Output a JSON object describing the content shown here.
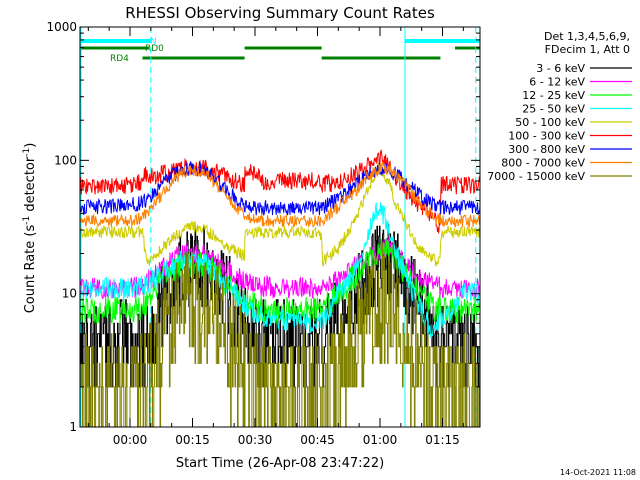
{
  "chart_data": {
    "type": "line",
    "title": "RHESSI Observing Summary Count Rates",
    "xlabel": "Start Time (26-Apr-08 23:47:22)",
    "ylabel": "Count Rate (s⁻¹ detector⁻¹)",
    "ylabel_parts": {
      "main": "Count Rate (s",
      "exp1": "-1",
      "mid": " detector",
      "exp2": "-1",
      "end": ")"
    },
    "y_scale": "log",
    "ylim": [
      1,
      1000
    ],
    "y_ticks": [
      {
        "value": 1,
        "label": "1"
      },
      {
        "value": 10,
        "label": "10"
      },
      {
        "value": 100,
        "label": "100"
      },
      {
        "value": 1000,
        "label": "1000"
      }
    ],
    "x_unit": "minutes",
    "xlim": [
      -12,
      84
    ],
    "x_ticks": [
      {
        "value": 0,
        "label": "00:00"
      },
      {
        "value": 15,
        "label": "00:15"
      },
      {
        "value": 30,
        "label": "00:30"
      },
      {
        "value": 45,
        "label": "00:45"
      },
      {
        "value": 60,
        "label": "01:00"
      },
      {
        "value": 75,
        "label": "01:15"
      }
    ],
    "legend_header": [
      "Det 1,3,4,5,6,9,",
      "FDecim 1, Att 0"
    ],
    "legend_position": "right",
    "footer_date": "14-Oct-2021 11:08",
    "flags": [
      {
        "label": "N",
        "color": "#00ffff",
        "segments": [
          [
            -12,
            5
          ],
          [
            66,
            84
          ]
        ]
      },
      {
        "label": "RD0",
        "color": "#008000",
        "segments": [
          [
            -12,
            4.5
          ],
          [
            27.5,
            46
          ],
          [
            78,
            84
          ]
        ]
      },
      {
        "label": "RD4",
        "color": "#008000",
        "segments": [
          [
            3,
            27.5
          ],
          [
            46,
            74.5
          ]
        ]
      }
    ],
    "night_lines": [
      {
        "x": 5,
        "style": "dashed"
      },
      {
        "x": 66,
        "style": "solid"
      },
      {
        "x": 83,
        "style": "dashed"
      }
    ],
    "series": [
      {
        "name": "3 - 6 keV",
        "color": "#000000",
        "points": [
          [
            -12,
            4.2
          ],
          [
            -6,
            4.2
          ],
          [
            0,
            4.2
          ],
          [
            3,
            4.2
          ],
          [
            6,
            6
          ],
          [
            9,
            10
          ],
          [
            12,
            14
          ],
          [
            15,
            16.5
          ],
          [
            18,
            15
          ],
          [
            21,
            12
          ],
          [
            24,
            9
          ],
          [
            27,
            6
          ],
          [
            30,
            4.5
          ],
          [
            35,
            4.3
          ],
          [
            40,
            4.3
          ],
          [
            46,
            4.3
          ],
          [
            50,
            6
          ],
          [
            54,
            9
          ],
          [
            57,
            13
          ],
          [
            60,
            17
          ],
          [
            62,
            18
          ],
          [
            64,
            16
          ],
          [
            67,
            11
          ],
          [
            70,
            7.5
          ],
          [
            73,
            5.2
          ],
          [
            75,
            4.5
          ],
          [
            78,
            4.2
          ],
          [
            84,
            4.2
          ]
        ]
      },
      {
        "name": "6 - 12 keV",
        "color": "#ff00ff",
        "points": [
          [
            -12,
            11
          ],
          [
            -6,
            11
          ],
          [
            0,
            11
          ],
          [
            3,
            11.5
          ],
          [
            6,
            14
          ],
          [
            9,
            17
          ],
          [
            12,
            19.5
          ],
          [
            15,
            20
          ],
          [
            18,
            19.5
          ],
          [
            21,
            17
          ],
          [
            24,
            14.5
          ],
          [
            27,
            12.5
          ],
          [
            30,
            11.5
          ],
          [
            35,
            11
          ],
          [
            40,
            11
          ],
          [
            46,
            11
          ],
          [
            50,
            13
          ],
          [
            54,
            16
          ],
          [
            57,
            19
          ],
          [
            60,
            21
          ],
          [
            62,
            22
          ],
          [
            64,
            20
          ],
          [
            67,
            16
          ],
          [
            70,
            13
          ],
          [
            73,
            11.5
          ],
          [
            75,
            11
          ],
          [
            78,
            11
          ],
          [
            84,
            11
          ]
        ]
      },
      {
        "name": "12 - 25 keV",
        "color": "#00ff00",
        "points": [
          [
            -12,
            7.5
          ],
          [
            -6,
            7.5
          ],
          [
            0,
            7.5
          ],
          [
            3,
            8
          ],
          [
            6,
            11
          ],
          [
            9,
            14
          ],
          [
            12,
            16.5
          ],
          [
            15,
            17
          ],
          [
            18,
            16
          ],
          [
            21,
            14
          ],
          [
            24,
            11
          ],
          [
            27,
            9
          ],
          [
            30,
            8
          ],
          [
            35,
            7.5
          ],
          [
            40,
            7.5
          ],
          [
            46,
            7.5
          ],
          [
            50,
            10
          ],
          [
            54,
            13.5
          ],
          [
            57,
            18
          ],
          [
            60,
            21
          ],
          [
            62,
            21.5
          ],
          [
            64,
            18
          ],
          [
            67,
            13
          ],
          [
            70,
            9.5
          ],
          [
            73,
            8
          ],
          [
            75,
            7.5
          ],
          [
            78,
            7.5
          ],
          [
            84,
            7.5
          ]
        ]
      },
      {
        "name": "25 - 50 keV",
        "color": "#00ffff",
        "points": [
          [
            -12,
            11
          ],
          [
            -6,
            11
          ],
          [
            0,
            11
          ],
          [
            3,
            11.5
          ],
          [
            6,
            13
          ],
          [
            9,
            15.5
          ],
          [
            12,
            17.5
          ],
          [
            15,
            18
          ],
          [
            18,
            17
          ],
          [
            21,
            14
          ],
          [
            24,
            11
          ],
          [
            27,
            8.5
          ],
          [
            30,
            7
          ],
          [
            35,
            6.5
          ],
          [
            40,
            6
          ],
          [
            46,
            6
          ],
          [
            50,
            10
          ],
          [
            54,
            15
          ],
          [
            57,
            28
          ],
          [
            59,
            40
          ],
          [
            60,
            44
          ],
          [
            62,
            32
          ],
          [
            64,
            20
          ],
          [
            67,
            12
          ],
          [
            70,
            7.5
          ],
          [
            72,
            5.5
          ],
          [
            75,
            6.5
          ],
          [
            78,
            8
          ],
          [
            80,
            10
          ],
          [
            84,
            10
          ]
        ]
      },
      {
        "name": "50 - 100 keV",
        "color": "#cccc00",
        "points": [
          [
            -12,
            29
          ],
          [
            -6,
            29
          ],
          [
            0,
            29
          ],
          [
            3,
            29
          ],
          [
            4,
            17
          ],
          [
            6,
            19
          ],
          [
            9,
            24
          ],
          [
            12,
            29
          ],
          [
            15,
            32
          ],
          [
            18,
            30
          ],
          [
            21,
            26
          ],
          [
            24,
            22
          ],
          [
            27.5,
            19
          ],
          [
            27.6,
            29
          ],
          [
            32,
            29
          ],
          [
            40,
            29
          ],
          [
            46,
            28
          ],
          [
            46.1,
            17
          ],
          [
            50,
            22
          ],
          [
            54,
            35
          ],
          [
            57,
            60
          ],
          [
            59,
            80
          ],
          [
            60,
            90
          ],
          [
            62,
            70
          ],
          [
            64,
            45
          ],
          [
            67,
            30
          ],
          [
            70,
            21
          ],
          [
            73,
            18
          ],
          [
            74.5,
            17
          ],
          [
            74.6,
            29
          ],
          [
            80,
            29
          ],
          [
            84,
            29
          ]
        ]
      },
      {
        "name": "100 - 300 keV",
        "color": "#ff0000",
        "points": [
          [
            -12,
            64
          ],
          [
            -6,
            64
          ],
          [
            0,
            64
          ],
          [
            3,
            70
          ],
          [
            4,
            80
          ],
          [
            6,
            75
          ],
          [
            9,
            82
          ],
          [
            12,
            87
          ],
          [
            15,
            90
          ],
          [
            18,
            87
          ],
          [
            21,
            80
          ],
          [
            24,
            72
          ],
          [
            27.5,
            65
          ],
          [
            27.6,
            85
          ],
          [
            32,
            70
          ],
          [
            40,
            70
          ],
          [
            46,
            70
          ],
          [
            46.1,
            65
          ],
          [
            50,
            70
          ],
          [
            54,
            80
          ],
          [
            57,
            90
          ],
          [
            59,
            100
          ],
          [
            60,
            105
          ],
          [
            62,
            90
          ],
          [
            64,
            72
          ],
          [
            67,
            55
          ],
          [
            70,
            45
          ],
          [
            73,
            38
          ],
          [
            74.5,
            28
          ],
          [
            74.6,
            65
          ],
          [
            80,
            65
          ],
          [
            84,
            65
          ]
        ]
      },
      {
        "name": "300 - 800 keV",
        "color": "#0000ff",
        "points": [
          [
            -12,
            44
          ],
          [
            -6,
            45
          ],
          [
            0,
            46
          ],
          [
            3,
            48
          ],
          [
            6,
            58
          ],
          [
            9,
            72
          ],
          [
            12,
            84
          ],
          [
            15,
            88
          ],
          [
            18,
            84
          ],
          [
            21,
            70
          ],
          [
            24,
            56
          ],
          [
            27,
            47
          ],
          [
            30,
            44
          ],
          [
            35,
            44
          ],
          [
            40,
            44
          ],
          [
            46,
            44
          ],
          [
            50,
            52
          ],
          [
            54,
            64
          ],
          [
            57,
            78
          ],
          [
            60,
            85
          ],
          [
            62,
            85
          ],
          [
            64,
            78
          ],
          [
            67,
            64
          ],
          [
            70,
            54
          ],
          [
            73,
            46
          ],
          [
            75,
            44
          ],
          [
            78,
            44
          ],
          [
            84,
            44
          ]
        ]
      },
      {
        "name": "800 - 7000 keV",
        "color": "#ff8000",
        "points": [
          [
            -12,
            35
          ],
          [
            -6,
            35
          ],
          [
            0,
            35
          ],
          [
            3,
            37
          ],
          [
            6,
            48
          ],
          [
            9,
            62
          ],
          [
            12,
            78
          ],
          [
            15,
            84
          ],
          [
            18,
            80
          ],
          [
            21,
            64
          ],
          [
            24,
            50
          ],
          [
            27,
            40
          ],
          [
            30,
            36
          ],
          [
            35,
            35
          ],
          [
            40,
            35
          ],
          [
            46,
            35
          ],
          [
            50,
            45
          ],
          [
            54,
            58
          ],
          [
            57,
            75
          ],
          [
            60,
            88
          ],
          [
            62,
            86
          ],
          [
            64,
            76
          ],
          [
            67,
            60
          ],
          [
            70,
            46
          ],
          [
            73,
            38
          ],
          [
            75,
            35
          ],
          [
            78,
            35
          ],
          [
            84,
            35
          ]
        ]
      },
      {
        "name": "7000 - 15000 keV",
        "color": "#808000",
        "points": [
          [
            -12,
            1.6
          ],
          [
            -6,
            1.6
          ],
          [
            0,
            1.6
          ],
          [
            3,
            1.8
          ],
          [
            6,
            2.8
          ],
          [
            9,
            4.5
          ],
          [
            12,
            7
          ],
          [
            15,
            9
          ],
          [
            18,
            8
          ],
          [
            21,
            6
          ],
          [
            24,
            4
          ],
          [
            27,
            2.5
          ],
          [
            30,
            1.7
          ],
          [
            35,
            1.6
          ],
          [
            40,
            1.6
          ],
          [
            46,
            1.6
          ],
          [
            50,
            2.5
          ],
          [
            54,
            4.5
          ],
          [
            57,
            7
          ],
          [
            60,
            8.5
          ],
          [
            62,
            8
          ],
          [
            64,
            6.5
          ],
          [
            67,
            4.2
          ],
          [
            70,
            2.6
          ],
          [
            73,
            1.8
          ],
          [
            75,
            1.6
          ],
          [
            78,
            1.6
          ],
          [
            84,
            1.6
          ]
        ]
      }
    ]
  }
}
